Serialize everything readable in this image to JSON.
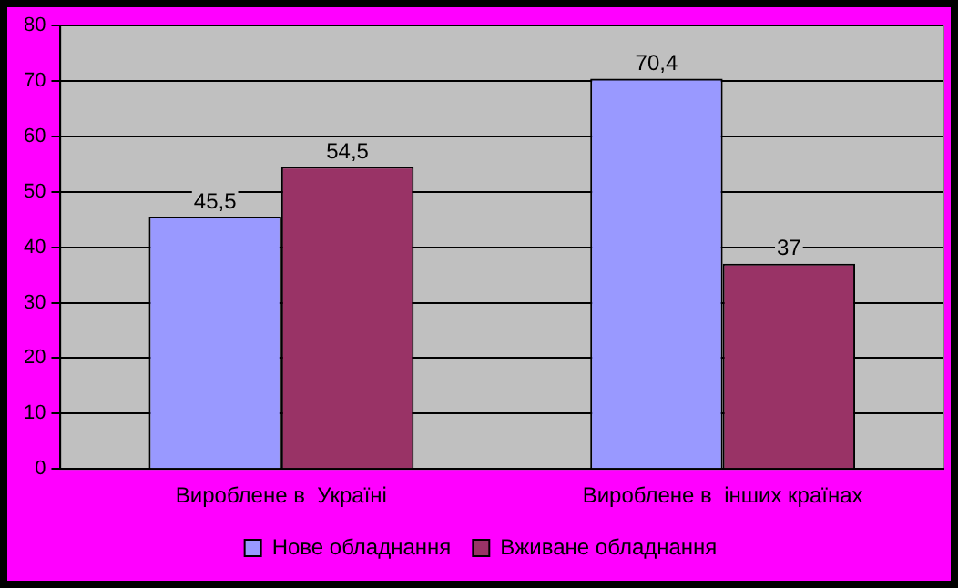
{
  "chart_data": {
    "type": "bar",
    "categories": [
      "Вироблене в  Україні",
      "Вироблене в  інших країнах"
    ],
    "series": [
      {
        "name": "Нове обладнання",
        "color": "#9999ff",
        "values": [
          45.5,
          70.4
        ],
        "value_labels": [
          "45,5",
          "70,4"
        ]
      },
      {
        "name": "Вживане обладнання",
        "color": "#993366",
        "values": [
          54.5,
          37
        ],
        "value_labels": [
          "54,5",
          "37"
        ]
      }
    ],
    "ylim": [
      0,
      80
    ],
    "yticks": [
      0,
      10,
      20,
      30,
      40,
      50,
      60,
      70,
      80
    ],
    "grid": "y",
    "legend": "bottom"
  }
}
